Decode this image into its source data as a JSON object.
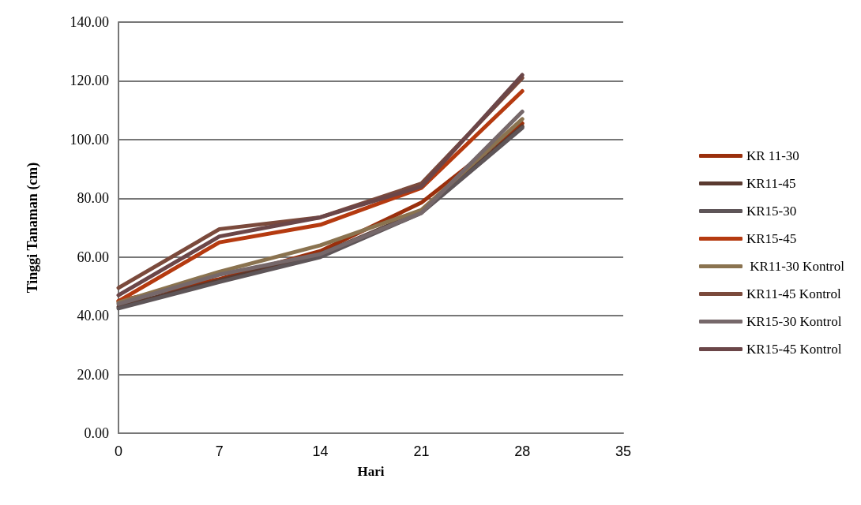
{
  "chart_data": {
    "type": "line",
    "xlabel": "Hari",
    "ylabel": "Tinggi Tanaman (cm)",
    "x": [
      0,
      7,
      14,
      21,
      28
    ],
    "xlim": [
      0,
      35
    ],
    "xticks": [
      0,
      7,
      14,
      21,
      28,
      35
    ],
    "ylim": [
      0,
      140
    ],
    "yticks": [
      {
        "value": 0,
        "label": "0.00"
      },
      {
        "value": 20,
        "label": "20.00"
      },
      {
        "value": 40,
        "label": "40.00"
      },
      {
        "value": 60,
        "label": "60.00"
      },
      {
        "value": 80,
        "label": "80.00"
      },
      {
        "value": 100,
        "label": "100.00"
      },
      {
        "value": 120,
        "label": "120.00"
      },
      {
        "value": 140,
        "label": "140.00"
      }
    ],
    "grid": "y",
    "legend": "right",
    "marker": "none",
    "line_style": "solid",
    "series": [
      {
        "name": "KR 11-30",
        "color": "#9a2f0c",
        "values": [
          45,
          52.5,
          62,
          78.5,
          105.5
        ]
      },
      {
        "name": "KR11-45",
        "color": "#5a3a30",
        "values": [
          43,
          52,
          61,
          75.5,
          104.5
        ]
      },
      {
        "name": "KR15-30",
        "color": "#5e5558",
        "values": [
          42.5,
          51.5,
          60,
          75,
          104
        ]
      },
      {
        "name": "KR15-45",
        "color": "#b53a10",
        "values": [
          45,
          65,
          71,
          83.5,
          116.5
        ]
      },
      {
        "name": " KR11-30 Kontrol",
        "color": "#8a7350",
        "values": [
          44.5,
          55,
          64,
          76,
          107
        ]
      },
      {
        "name": "KR11-45 Kontrol",
        "color": "#7b4a3c",
        "values": [
          49.5,
          69.5,
          73.5,
          85,
          121
        ]
      },
      {
        "name": "KR15-30 Kontrol",
        "color": "#76686a",
        "values": [
          44,
          54,
          61,
          75,
          109.5
        ]
      },
      {
        "name": "KR15-45 Kontrol",
        "color": "#6b4648",
        "values": [
          47,
          67,
          73.5,
          84,
          122
        ]
      }
    ]
  }
}
